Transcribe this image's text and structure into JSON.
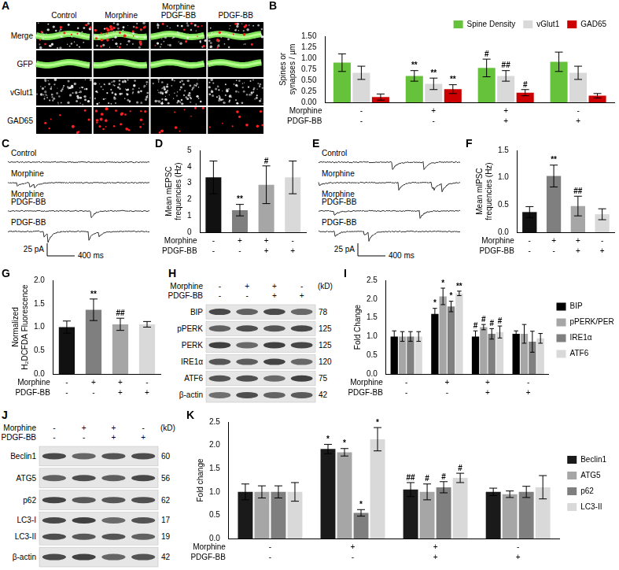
{
  "chart_data": [
    {
      "panel": "B",
      "type": "bar",
      "y_label": [
        "Spines or",
        "synapses / µm"
      ],
      "ylim": [
        0,
        1.5
      ],
      "yticks": [
        {
          "value": 0,
          "label": "0.00"
        },
        0.25,
        {
          "value": 0.5,
          "label": "0.50"
        },
        0.75,
        {
          "value": 1,
          "label": "1.00"
        },
        1.25,
        {
          "value": 1.5,
          "label": "1.50"
        }
      ],
      "grid": false,
      "legend": "top",
      "conditions": [
        {
          "name": "Morphine",
          "values": [
            "-",
            "+",
            "+",
            "-"
          ]
        },
        {
          "name": "PDGF-BB",
          "values": [
            "-",
            "-",
            "+",
            "+"
          ]
        }
      ],
      "series": [
        {
          "name": "Spine Density",
          "color": "#66c23a",
          "values": [
            0.9,
            0.6,
            0.78,
            0.92
          ],
          "errors": [
            0.2,
            0.12,
            0.2,
            0.22
          ],
          "annotations": [
            null,
            "**",
            "#",
            null
          ]
        },
        {
          "name": "vGlut1",
          "color": "#d9d9d9",
          "values": [
            0.67,
            0.42,
            0.6,
            0.67
          ],
          "errors": [
            0.15,
            0.13,
            0.12,
            0.15
          ],
          "annotations": [
            null,
            "**",
            "##",
            null
          ]
        },
        {
          "name": "GAD65",
          "color": "#cc0000",
          "values": [
            0.12,
            0.3,
            0.22,
            0.15
          ],
          "errors": [
            0.07,
            0.1,
            0.07,
            0.05
          ],
          "annotations": [
            null,
            "**",
            "#",
            null
          ]
        }
      ]
    },
    {
      "panel": "D",
      "type": "bar",
      "y_label": [
        "Mean mEPSC",
        "frequencies (Hz)"
      ],
      "ylim": [
        0,
        5
      ],
      "yticks": [
        0,
        1,
        2,
        3,
        4,
        5
      ],
      "grid": false,
      "conditions": [
        {
          "name": "Morphine",
          "values": [
            "-",
            "+",
            "+",
            "-"
          ]
        },
        {
          "name": "PDGF-BB",
          "values": [
            "-",
            "-",
            "+",
            "+"
          ]
        }
      ],
      "values": [
        3.35,
        1.35,
        2.9,
        3.35
      ],
      "errors": [
        1.0,
        0.35,
        1.15,
        1.0
      ],
      "annotations": [
        null,
        "**",
        "#",
        null
      ],
      "colors": [
        "#111111",
        "#7f7f7f",
        "#a6a6a6",
        "#d9d9d9"
      ]
    },
    {
      "panel": "F",
      "type": "bar",
      "y_label": [
        "Mean mIPSC",
        "frequencies (Hz)"
      ],
      "ylim": [
        0,
        1.5
      ],
      "yticks": [
        {
          "value": 0,
          "label": "0.0"
        },
        0.5,
        {
          "value": 1,
          "label": "1.0"
        },
        1.5
      ],
      "grid": false,
      "conditions": [
        {
          "name": "Morphine",
          "values": [
            "-",
            "+",
            "+",
            "-"
          ]
        },
        {
          "name": "PDGF-BB",
          "values": [
            "-",
            "-",
            "+",
            "+"
          ]
        }
      ],
      "values": [
        0.37,
        1.03,
        0.48,
        0.33
      ],
      "errors": [
        0.1,
        0.2,
        0.18,
        0.1
      ],
      "annotations": [
        null,
        "**",
        "##",
        null
      ],
      "colors": [
        "#111111",
        "#7f7f7f",
        "#a6a6a6",
        "#d9d9d9"
      ]
    },
    {
      "panel": "G",
      "type": "bar",
      "y_label": [
        "Normalized",
        "H₂DCFDA Fluorescence"
      ],
      "ylim": [
        0,
        2
      ],
      "yticks": [
        {
          "value": 0,
          "label": "0.0"
        },
        0.5,
        {
          "value": 1,
          "label": "1.0"
        },
        1.5,
        {
          "value": 2,
          "label": "2.0"
        }
      ],
      "grid": false,
      "conditions": [
        {
          "name": "Morphine",
          "values": [
            "-",
            "+",
            "+",
            "-"
          ]
        },
        {
          "name": "PDGF-BB",
          "values": [
            "-",
            "-",
            "+",
            "+"
          ]
        }
      ],
      "values": [
        1.0,
        1.37,
        1.06,
        1.06
      ],
      "errors": [
        0.13,
        0.23,
        0.13,
        0.06
      ],
      "annotations": [
        null,
        "**",
        "##",
        null
      ],
      "colors": [
        "#111111",
        "#7f7f7f",
        "#a6a6a6",
        "#d9d9d9"
      ]
    },
    {
      "panel": "I",
      "type": "bar",
      "y_label": "Fold Change",
      "ylim": [
        0,
        2.5
      ],
      "yticks": [
        {
          "value": 0,
          "label": "0.0"
        },
        0.5,
        {
          "value": 1,
          "label": "1.0"
        },
        1.5,
        {
          "value": 2,
          "label": "2.0"
        },
        2.5
      ],
      "grid": false,
      "legend": "right",
      "conditions": [
        {
          "name": "Morphine",
          "values": [
            "-",
            "+",
            "+",
            "-"
          ]
        },
        {
          "name": "PDGF-BB",
          "values": [
            "-",
            "-",
            "+",
            "+"
          ]
        }
      ],
      "series": [
        {
          "name": "BIP",
          "color": "#000000",
          "values": [
            1,
            1.6,
            1.0,
            1.07
          ],
          "errors": [
            0.15,
            0.15,
            0.15,
            0.08
          ],
          "annotations": [
            null,
            "*",
            "#",
            null
          ]
        },
        {
          "name": "pPERK/PERK",
          "color": "#a6a6a6",
          "values": [
            1,
            2.07,
            1.25,
            1.07
          ],
          "errors": [
            0.13,
            0.22,
            0.07,
            0.25
          ],
          "annotations": [
            null,
            "*",
            "#",
            null
          ]
        },
        {
          "name": "IRE1α",
          "color": "#808080",
          "values": [
            1,
            1.8,
            1.07,
            0.86
          ],
          "errors": [
            0.13,
            0.14,
            0.14,
            0.28
          ],
          "annotations": [
            null,
            "*",
            "#",
            null
          ]
        },
        {
          "name": "ATF6",
          "color": "#d9d9d9",
          "values": [
            1,
            2.15,
            1.12,
            0.95
          ],
          "errors": [
            0.13,
            0.06,
            0.16,
            0.13
          ],
          "annotations": [
            null,
            "**",
            "#",
            null
          ]
        }
      ]
    },
    {
      "panel": "K",
      "type": "bar",
      "y_label": "Fold change",
      "ylim": [
        0,
        2.5
      ],
      "yticks": [
        {
          "value": 0,
          "label": "0.0"
        },
        0.5,
        {
          "value": 1,
          "label": "1.0"
        },
        1.5,
        {
          "value": 2,
          "label": "2.0"
        },
        2.5
      ],
      "grid": false,
      "legend": "right",
      "conditions": [
        {
          "name": "Morphine",
          "values": [
            "-",
            "+",
            "+",
            "-"
          ]
        },
        {
          "name": "PDGF-BB",
          "values": [
            "-",
            "-",
            "+",
            "+"
          ]
        }
      ],
      "series": [
        {
          "name": "Beclin1",
          "color": "#1a1a1a",
          "values": [
            1,
            1.92,
            1.05,
            1.0
          ],
          "errors": [
            0.17,
            0.1,
            0.15,
            0.08
          ],
          "annotations": [
            null,
            "*",
            "##",
            null
          ]
        },
        {
          "name": "ATG5",
          "color": "#a6a6a6",
          "values": [
            1,
            1.85,
            1.0,
            0.95
          ],
          "errors": [
            0.13,
            0.08,
            0.17,
            0.07
          ],
          "annotations": [
            null,
            "*",
            "#",
            null
          ]
        },
        {
          "name": "p62",
          "color": "#7f7f7f",
          "values": [
            1,
            0.55,
            1.1,
            1.0
          ],
          "errors": [
            0.13,
            0.07,
            0.12,
            0.12
          ],
          "annotations": [
            null,
            "*",
            "#",
            null
          ]
        },
        {
          "name": "LC3-II",
          "color": "#d9d9d9",
          "values": [
            1,
            2.13,
            1.3,
            1.1
          ],
          "errors": [
            0.2,
            0.25,
            0.1,
            0.25
          ],
          "annotations": [
            null,
            "*",
            "#",
            null
          ]
        }
      ]
    }
  ],
  "figure": {
    "A": {
      "panel": "A",
      "columns": [
        [
          "Control"
        ],
        [
          "Morphine"
        ],
        [
          "Morphine",
          "PDGF-BB"
        ],
        [
          "PDGF-BB"
        ]
      ],
      "rows": [
        "Merge",
        "GFP",
        "vGlut1",
        "GAD65"
      ]
    },
    "C": {
      "panel": "C",
      "traces": [
        [
          "Control"
        ],
        [
          "Morphine"
        ],
        [
          "Morphine",
          "PDGF-BB"
        ],
        [
          "PDGF-BB"
        ]
      ],
      "scale_y": "25 pA",
      "scale_x": "400 ms"
    },
    "E": {
      "panel": "E",
      "traces": [
        [
          "Control"
        ],
        [
          "Morphine"
        ],
        [
          "Morphine",
          "PDGF-BB"
        ],
        [
          "PDGF-BB"
        ]
      ],
      "scale_y": "25 pA",
      "scale_x": "400 ms"
    },
    "H": {
      "panel": "H",
      "conditions": [
        {
          "name": "Morphine",
          "values": [
            "-",
            "+",
            "+",
            "-"
          ]
        },
        {
          "name": "PDGF-BB",
          "values": [
            "-",
            "-",
            "+",
            "+"
          ]
        }
      ],
      "unit": "(kD)",
      "bands": [
        {
          "labels": [
            "BIP"
          ],
          "kd": [
            78
          ]
        },
        {
          "labels": [
            "pPERK"
          ],
          "kd": [
            125
          ]
        },
        {
          "labels": [
            "PERK"
          ],
          "kd": [
            125
          ]
        },
        {
          "labels": [
            "IRE1α"
          ],
          "kd": [
            120
          ]
        },
        {
          "labels": [
            "ATF6"
          ],
          "kd": [
            75
          ]
        },
        {
          "labels": [
            "β-actin"
          ],
          "kd": [
            42
          ]
        }
      ]
    },
    "J": {
      "panel": "J",
      "conditions": [
        {
          "name": "Morphine",
          "values": [
            "-",
            "+",
            "+",
            "-"
          ]
        },
        {
          "name": "PDGF-BB",
          "values": [
            "-",
            "-",
            "+",
            "+"
          ]
        }
      ],
      "unit": "(kD)",
      "bands": [
        {
          "labels": [
            "Beclin1"
          ],
          "kd": [
            60
          ]
        },
        {
          "labels": [
            "ATG5"
          ],
          "kd": [
            56
          ]
        },
        {
          "labels": [
            "p62"
          ],
          "kd": [
            62
          ]
        },
        {
          "labels": [
            "LC3-I",
            "LC3-II"
          ],
          "kd": [
            17,
            19
          ]
        },
        {
          "labels": [
            "β-actin"
          ],
          "kd": [
            42
          ]
        }
      ]
    }
  }
}
